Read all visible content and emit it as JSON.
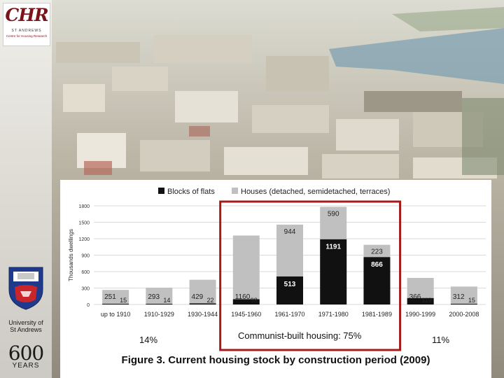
{
  "logo": {
    "letters": "CHR",
    "line1": "ST ANDREWS",
    "line2": "Centre for Housing Research"
  },
  "university": {
    "name_line1": "University of",
    "name_line2": "St Andrews",
    "anniversary": "600",
    "anniversary_word": "YEARS"
  },
  "chart_data": {
    "type": "bar",
    "stacked": true,
    "ylabel": "Thousands dwellings",
    "ylim": [
      0,
      1800
    ],
    "yticks": [
      0,
      300,
      600,
      900,
      1200,
      1500,
      1800
    ],
    "grid": true,
    "legend_position": "top",
    "categories": [
      "up to 1910",
      "1910-1929",
      "1930-1944",
      "1945-1960",
      "1961-1970",
      "1971-1980",
      "1981-1989",
      "1990-1999",
      "2000-2008"
    ],
    "series": [
      {
        "name": "Blocks of flats",
        "color": "#111111",
        "values": [
          15,
          14,
          22,
          98,
          513,
          1191,
          866,
          119,
          15
        ]
      },
      {
        "name": "Houses (detached, semidetached, terraces)",
        "color": "#c0c0c0",
        "values": [
          251,
          293,
          429,
          1160,
          944,
          590,
          223,
          366,
          312
        ]
      }
    ],
    "annotations": [
      {
        "text": "14%"
      },
      {
        "text": "Communist-built housing: 75%"
      },
      {
        "text": "11%"
      }
    ],
    "highlight_color": "#a51b1b"
  },
  "caption": "Figure 3. Current housing stock by construction period (2009)"
}
